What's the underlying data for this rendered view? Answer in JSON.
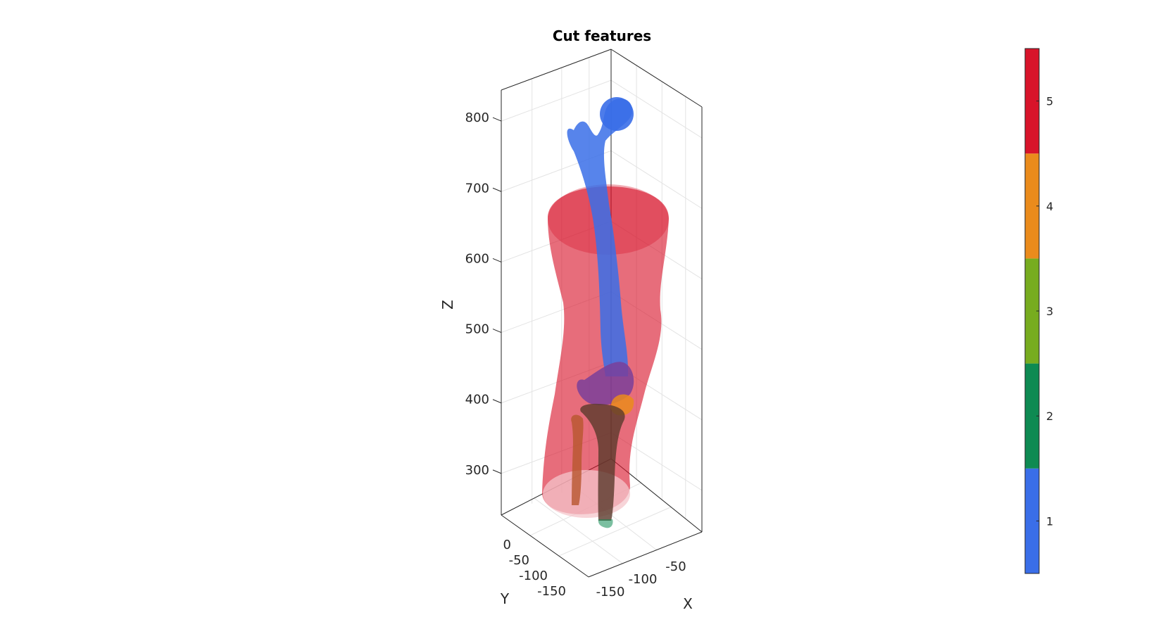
{
  "chart_data": {
    "type": "3d-surface",
    "title": "Cut features",
    "xlabel": "X",
    "ylabel": "Y",
    "zlabel": "Z",
    "x_ticks": [
      "-150",
      "-100",
      "-50"
    ],
    "y_ticks": [
      "0",
      "-50",
      "-100",
      "-150"
    ],
    "z_ticks": [
      "300",
      "400",
      "500",
      "600",
      "700",
      "800"
    ],
    "zlim": [
      230,
      860
    ],
    "grid": true,
    "colorbar": {
      "ticks": [
        "1",
        "2",
        "3",
        "4",
        "5"
      ],
      "range": [
        0.5,
        5.5
      ],
      "colors": [
        "#3a6ee8",
        "#0e8a52",
        "#77ac1f",
        "#ea8b1c",
        "#d8142a"
      ]
    },
    "features": [
      {
        "label": "1",
        "color": "#3a6ee8"
      },
      {
        "label": "2",
        "color": "#0e8a52"
      },
      {
        "label": "3",
        "color": "#77ac1f"
      },
      {
        "label": "4",
        "color": "#ea8b1c"
      },
      {
        "label": "5",
        "color": "#d8142a"
      }
    ]
  }
}
